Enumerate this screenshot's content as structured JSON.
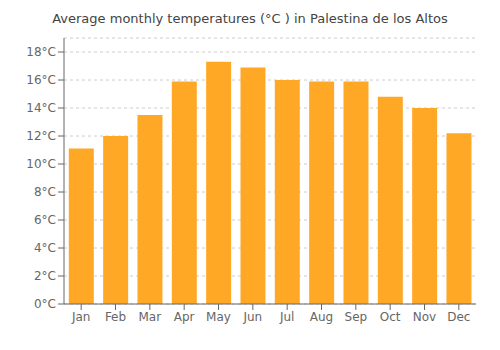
{
  "chart_data": {
    "type": "bar",
    "title": "Average monthly temperatures (°C ) in Palestina de los Altos",
    "categories": [
      "Jan",
      "Feb",
      "Mar",
      "Apr",
      "May",
      "Jun",
      "Jul",
      "Aug",
      "Sep",
      "Oct",
      "Nov",
      "Dec"
    ],
    "values": [
      11.1,
      12.0,
      13.5,
      15.9,
      17.3,
      16.9,
      16.0,
      15.9,
      15.9,
      14.8,
      14.0,
      12.2
    ],
    "color": "#FFA826",
    "ylim": [
      0,
      19
    ],
    "yticks": [
      {
        "value": 0,
        "label": "0°C"
      },
      {
        "value": 2,
        "label": "2°C"
      },
      {
        "value": 4,
        "label": "4°C"
      },
      {
        "value": 6,
        "label": "6°C"
      },
      {
        "value": 8,
        "label": "8°C"
      },
      {
        "value": 10,
        "label": "10°C"
      },
      {
        "value": 12,
        "label": "12°C"
      },
      {
        "value": 14,
        "label": "14°C"
      },
      {
        "value": 16,
        "label": "16°C"
      },
      {
        "value": 18,
        "label": "18°C"
      }
    ],
    "grid": true
  }
}
